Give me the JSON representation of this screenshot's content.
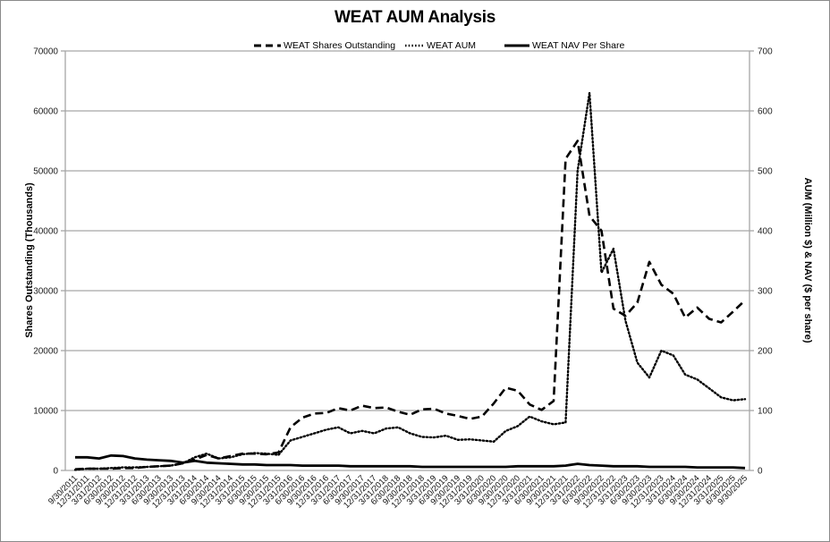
{
  "chart_data": {
    "type": "line",
    "title": "WEAT AUM Analysis",
    "xlabel": "",
    "ylabel_left": "Shares Outstanding (Thousands)",
    "ylabel_right": "AUM (Million $) & NAV ($ per share)",
    "ylim_left": [
      0,
      70000
    ],
    "ylim_right": [
      0,
      700
    ],
    "yticks_left": [
      "0",
      "10000",
      "20000",
      "30000",
      "40000",
      "50000",
      "60000",
      "70000"
    ],
    "yticks_right": [
      "0",
      "100",
      "200",
      "300",
      "400",
      "500",
      "600",
      "700"
    ],
    "grid": true,
    "legend_position": "top",
    "categories": [
      "9/30/2011",
      "12/31/2011",
      "3/31/2012",
      "6/30/2012",
      "9/30/2012",
      "12/31/2012",
      "3/31/2013",
      "6/30/2013",
      "9/30/2013",
      "12/31/2013",
      "3/31/2014",
      "6/30/2014",
      "9/30/2014",
      "12/31/2014",
      "3/31/2015",
      "6/30/2015",
      "9/30/2015",
      "12/31/2015",
      "3/31/2016",
      "6/30/2016",
      "9/30/2016",
      "12/31/2016",
      "3/31/2017",
      "6/30/2017",
      "9/30/2017",
      "12/31/2017",
      "3/31/2018",
      "6/30/2018",
      "9/30/2018",
      "12/31/2018",
      "3/31/2019",
      "6/30/2019",
      "9/30/2019",
      "12/31/2019",
      "3/31/2020",
      "6/30/2020",
      "9/30/2020",
      "12/31/2020",
      "3/31/2021",
      "6/30/2021",
      "9/30/2021",
      "12/31/2021",
      "3/31/2022",
      "6/30/2022",
      "9/30/2022",
      "12/31/2022",
      "3/31/2023",
      "6/30/2023",
      "9/30/2023",
      "12/31/2023",
      "3/31/2024",
      "6/30/2024",
      "9/30/2024",
      "12/31/2024",
      "3/31/2025",
      "6/30/2025",
      "9/30/2025"
    ],
    "series": [
      {
        "name": "WEAT Shares Outstanding",
        "axis": "left",
        "style": "dashed",
        "values": [
          200,
          300,
          300,
          300,
          400,
          400,
          600,
          700,
          800,
          1200,
          1800,
          2600,
          2000,
          2400,
          2800,
          2800,
          2700,
          3000,
          7200,
          8800,
          9500,
          9600,
          10400,
          10000,
          10800,
          10400,
          10500,
          9800,
          9300,
          10200,
          10300,
          9500,
          9100,
          8600,
          9000,
          11200,
          13800,
          13300,
          11000,
          10100,
          11600,
          52000,
          55000,
          42500,
          40000,
          27000,
          25800,
          28000,
          34800,
          31000,
          29500,
          25500,
          27200,
          25300,
          24700,
          26500,
          28400
        ]
      },
      {
        "name": "WEAT AUM",
        "axis": "right",
        "style": "dotted",
        "values": [
          1,
          3,
          3,
          4,
          5,
          5,
          6,
          7,
          8,
          12,
          22,
          28,
          20,
          22,
          27,
          29,
          28,
          26,
          50,
          56,
          62,
          68,
          72,
          62,
          66,
          62,
          70,
          72,
          62,
          56,
          55,
          58,
          51,
          52,
          50,
          48,
          66,
          74,
          90,
          82,
          77,
          80,
          500,
          630,
          330,
          370,
          250,
          180,
          155,
          200,
          192,
          160,
          152,
          137,
          122,
          117,
          119
        ]
      },
      {
        "name": "WEAT NAV Per Share",
        "axis": "right",
        "style": "solid",
        "values": [
          22,
          22,
          20,
          25,
          24,
          20,
          18,
          17,
          16,
          13,
          16,
          13,
          12,
          11,
          10,
          10,
          9,
          9,
          9,
          8,
          8,
          8,
          8,
          7,
          7,
          7,
          7,
          7,
          7,
          6,
          6,
          6,
          6,
          6,
          6,
          6,
          6,
          7,
          7,
          7,
          7,
          8,
          11,
          9,
          8,
          7,
          7,
          7,
          6,
          6,
          6,
          6,
          5,
          5,
          5,
          5,
          4
        ]
      }
    ]
  },
  "legend": [
    {
      "label": "WEAT Shares Outstanding"
    },
    {
      "label": "WEAT AUM"
    },
    {
      "label": "WEAT NAV Per Share"
    }
  ]
}
